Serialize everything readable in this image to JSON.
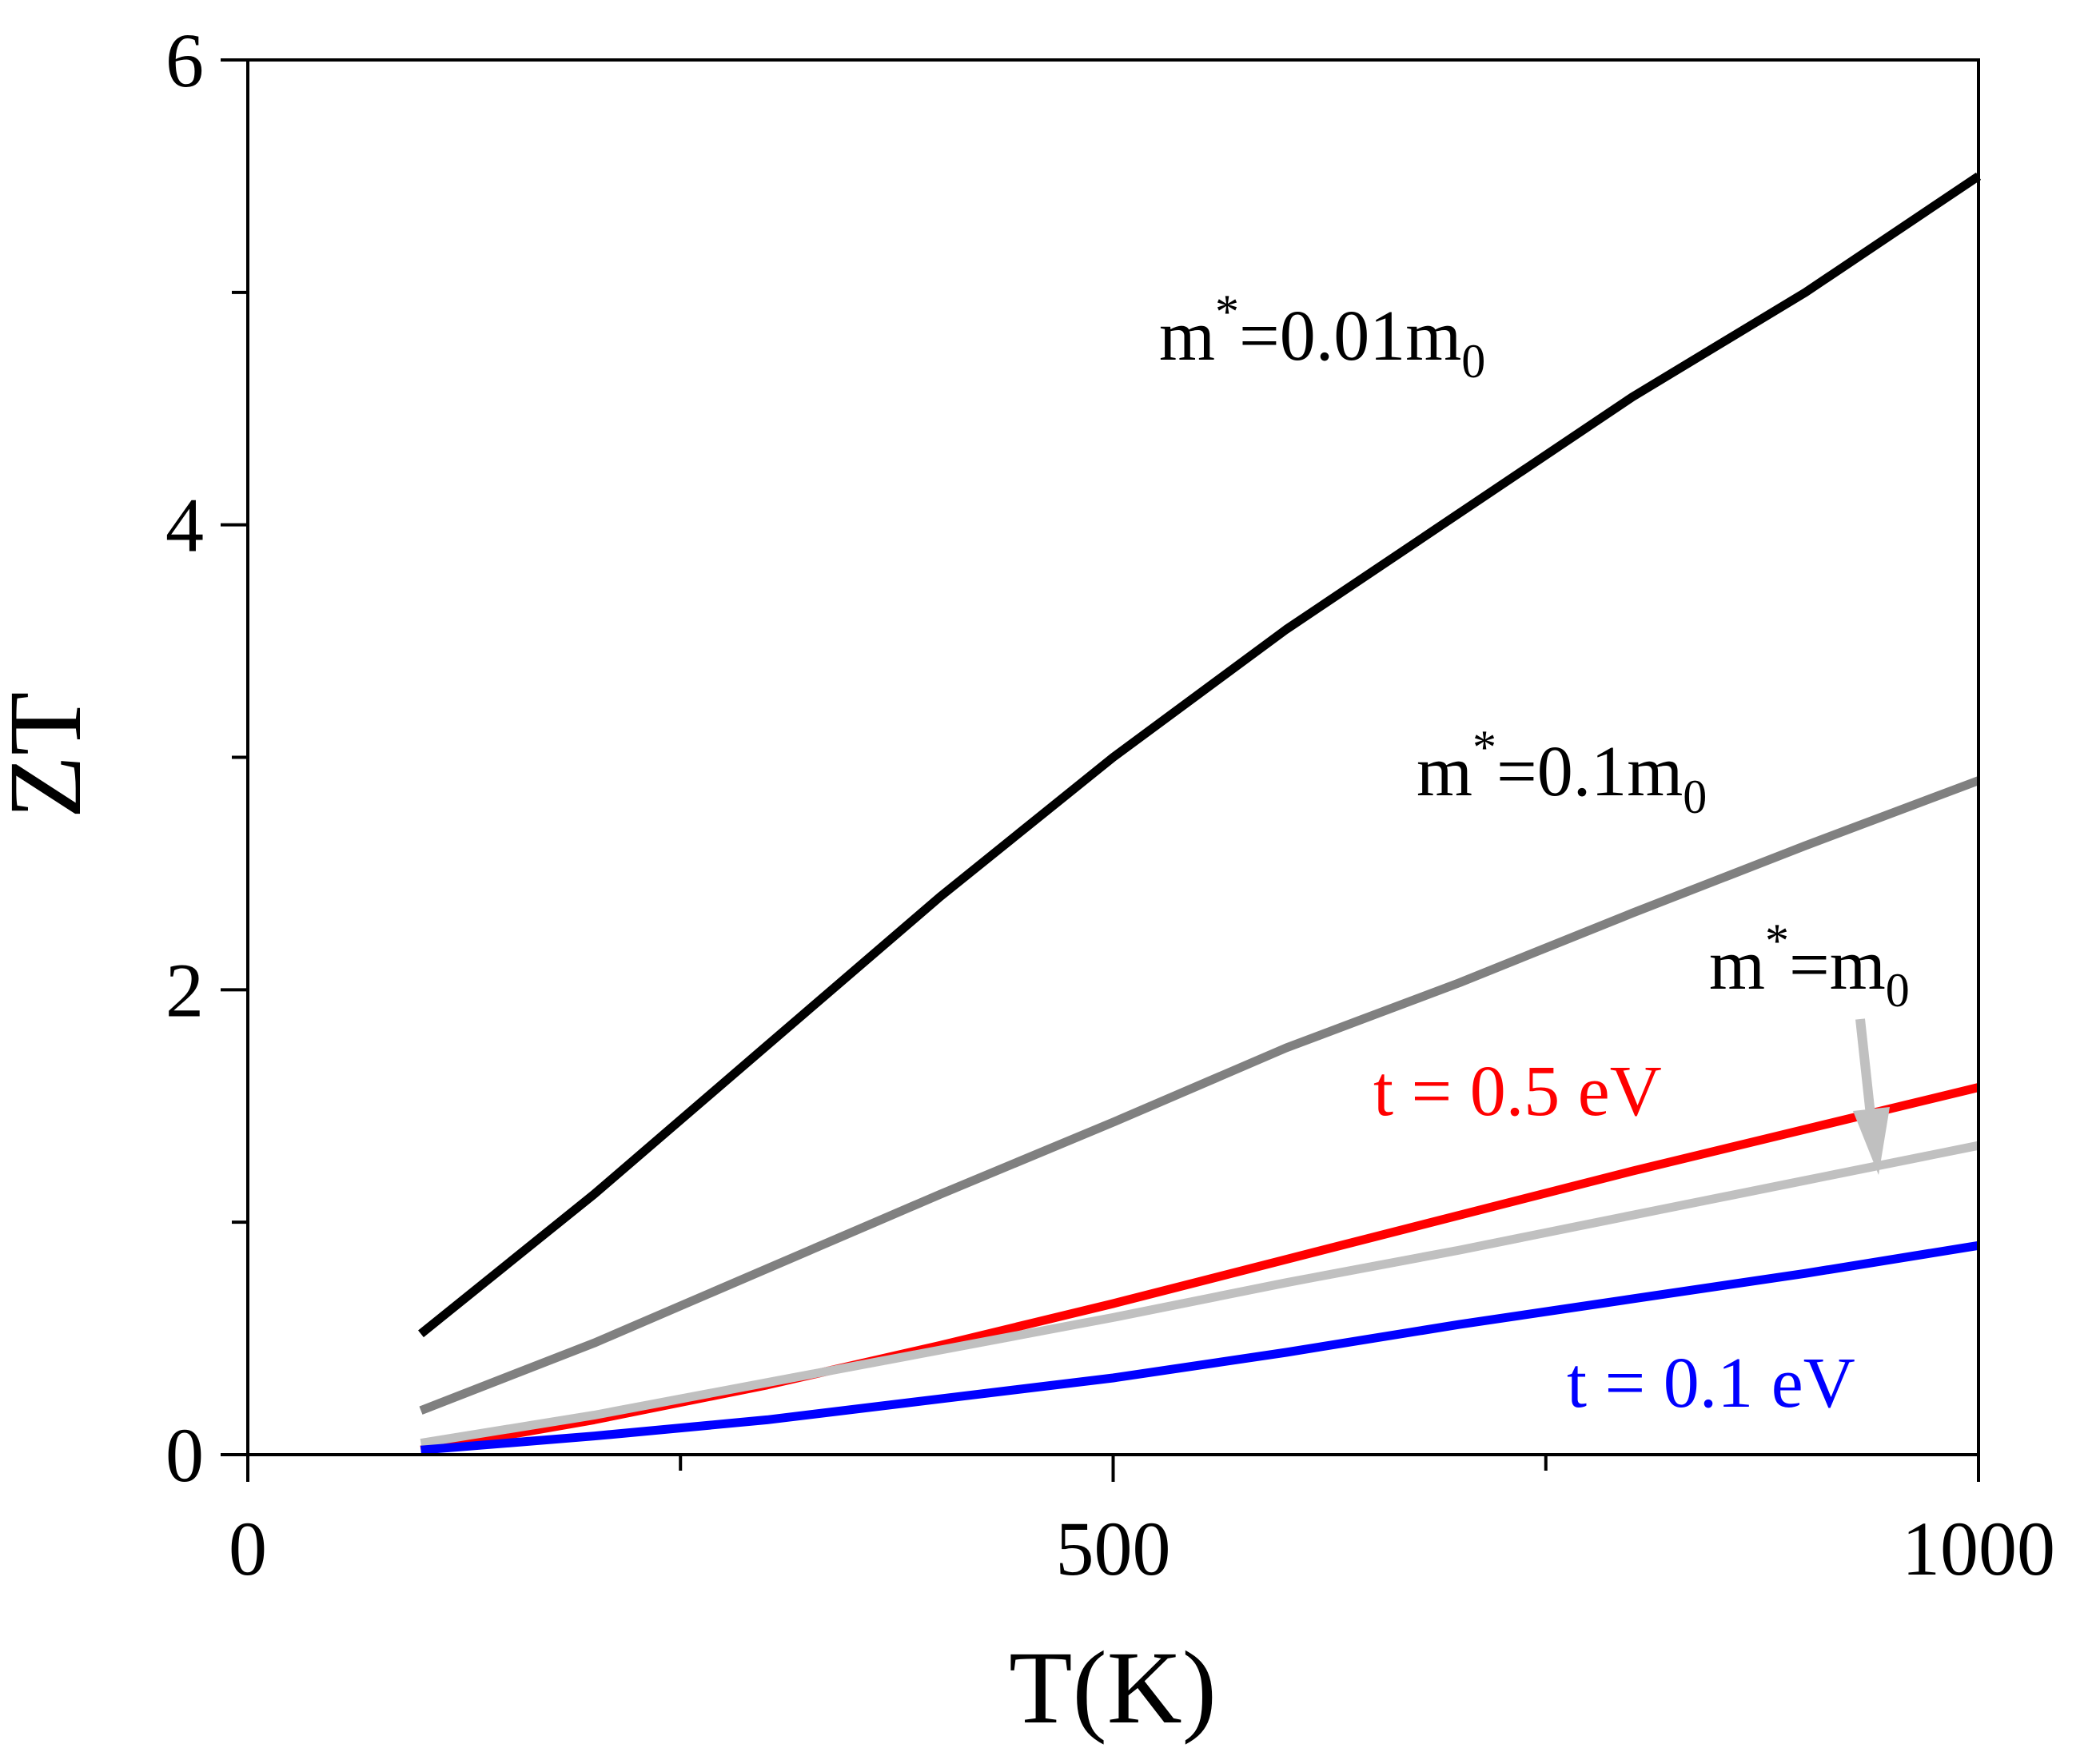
{
  "chart_data": {
    "type": "line",
    "title": "",
    "xlabel": "T(K)",
    "ylabel": "ZT",
    "xlim": [
      0,
      1000
    ],
    "ylim": [
      0,
      6
    ],
    "xticks": [
      0,
      500,
      1000
    ],
    "xticks_minor": [
      250,
      750
    ],
    "yticks": [
      0,
      2,
      4,
      6
    ],
    "yticks_minor": [
      1,
      3,
      5
    ],
    "grid": false,
    "series": [
      {
        "name": "m*=0.01m0",
        "color": "#000000",
        "label": {
          "base": "m",
          "sup": "*",
          "middle": "=0.01m",
          "sub": "0"
        },
        "x": [
          100,
          200,
          300,
          400,
          500,
          600,
          700,
          800,
          900,
          1000
        ],
        "y": [
          0.52,
          1.12,
          1.76,
          2.4,
          3.0,
          3.55,
          4.05,
          4.55,
          5.0,
          5.5
        ]
      },
      {
        "name": "m*=0.1m0",
        "color": "#808080",
        "label": {
          "base": "m",
          "sup": "*",
          "middle": "=0.1m",
          "sub": "0"
        },
        "x": [
          100,
          200,
          300,
          400,
          500,
          600,
          700,
          800,
          900,
          1000
        ],
        "y": [
          0.19,
          0.48,
          0.8,
          1.12,
          1.43,
          1.75,
          2.03,
          2.33,
          2.62,
          2.9
        ]
      },
      {
        "name": "t = 0.5 eV",
        "color": "#ff0000",
        "label": {
          "text": "t = 0.5 eV"
        },
        "x": [
          100,
          200,
          300,
          400,
          500,
          600,
          700,
          800,
          900,
          1000
        ],
        "y": [
          0.02,
          0.15,
          0.3,
          0.47,
          0.65,
          0.84,
          1.03,
          1.22,
          1.4,
          1.58
        ]
      },
      {
        "name": "m*=m0",
        "color": "#c0c0c0",
        "label": {
          "base": "m",
          "sup": "*",
          "middle": "=m",
          "sub": "0"
        },
        "x": [
          100,
          200,
          300,
          400,
          500,
          600,
          700,
          800,
          900,
          1000
        ],
        "y": [
          0.05,
          0.17,
          0.31,
          0.45,
          0.59,
          0.74,
          0.88,
          1.03,
          1.18,
          1.33
        ]
      },
      {
        "name": "t = 0.1 eV",
        "color": "#0000ff",
        "label": {
          "text": "t = 0.1 eV"
        },
        "x": [
          100,
          200,
          300,
          400,
          500,
          600,
          700,
          800,
          900,
          1000
        ],
        "y": [
          0.02,
          0.08,
          0.15,
          0.24,
          0.33,
          0.44,
          0.56,
          0.67,
          0.78,
          0.9
        ]
      }
    ]
  }
}
